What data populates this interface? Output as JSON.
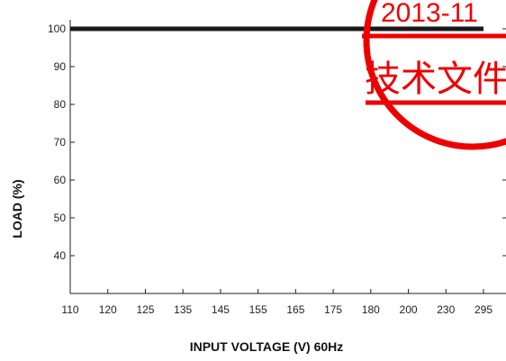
{
  "chart_data": {
    "type": "line",
    "title": "",
    "xlabel": "INPUT VOLTAGE (V) 60Hz",
    "ylabel": "LOAD (%)",
    "categories": [
      "110",
      "120",
      "125",
      "135",
      "145",
      "155",
      "165",
      "175",
      "180",
      "200",
      "230",
      "295"
    ],
    "yticks": [
      40,
      50,
      60,
      70,
      80,
      90,
      100
    ],
    "ylim": [
      30,
      105
    ],
    "grid": false,
    "series": [
      {
        "values": [
          100,
          100,
          100,
          100,
          100,
          100,
          100,
          100,
          100,
          100,
          100,
          100
        ],
        "color": "#1a1a1a"
      }
    ]
  },
  "stamp": {
    "date_text": "2013-11",
    "caption_text": "技术文件发",
    "color": "#ee0000"
  }
}
